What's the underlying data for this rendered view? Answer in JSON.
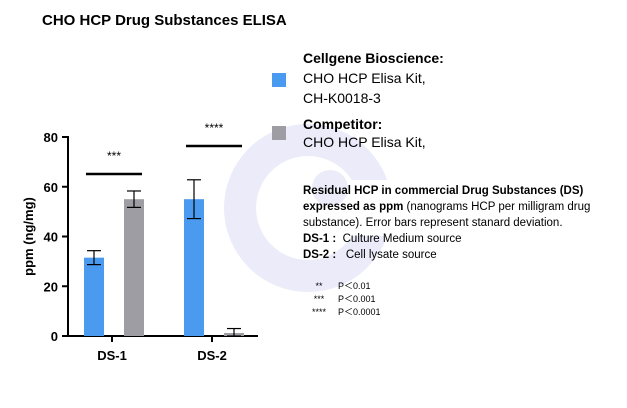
{
  "title": "CHO HCP Drug Substances ELISA",
  "colors": {
    "cellgene": "#4a9af0",
    "competitor": "#9d9da3",
    "axis": "#000000",
    "watermark": "#6a6ad8"
  },
  "watermark_icon": "cellgene-logo-watermark",
  "legend": [
    {
      "heading": "Cellgene Bioscience:",
      "lines": [
        "CHO HCP Elisa Kit,",
        "CH-K0018-3"
      ],
      "color": "#4a9af0"
    },
    {
      "heading": "Competitor:",
      "lines": [
        "CHO HCP Elisa Kit,"
      ],
      "color": "#9d9da3"
    }
  ],
  "notes": {
    "bold_lead": "Residual HCP in commercial Drug Substances (DS) expressed as ppm",
    "rest": " (nanograms HCP per milligram drug substance). Error bars represent stanard deviation.",
    "definitions": [
      {
        "term": "DS-1 :",
        "desc": "Culture Medium source"
      },
      {
        "term": "DS-2 :",
        "desc": "Cell lysate source"
      }
    ]
  },
  "significance_key": [
    {
      "symbol": "**",
      "meaning": "P＜0.01"
    },
    {
      "symbol": "***",
      "meaning": "P＜0.001"
    },
    {
      "symbol": "****",
      "meaning": "P＜0.0001"
    }
  ],
  "chart_data": {
    "type": "bar",
    "categories": [
      "DS-1",
      "DS-2"
    ],
    "series": [
      {
        "name": "Cellgene Bioscience",
        "values": [
          31.5,
          55
        ],
        "errors": [
          2.8,
          7.8
        ]
      },
      {
        "name": "Competitor",
        "values": [
          55,
          1.2
        ],
        "errors": [
          3.3,
          1.8
        ]
      }
    ],
    "significance": [
      "***",
      "****"
    ],
    "ylabel": "ppm (ng/mg)",
    "xlabel": "",
    "ylim": [
      0,
      80
    ],
    "yticks": [
      0,
      20,
      40,
      60,
      80
    ]
  }
}
